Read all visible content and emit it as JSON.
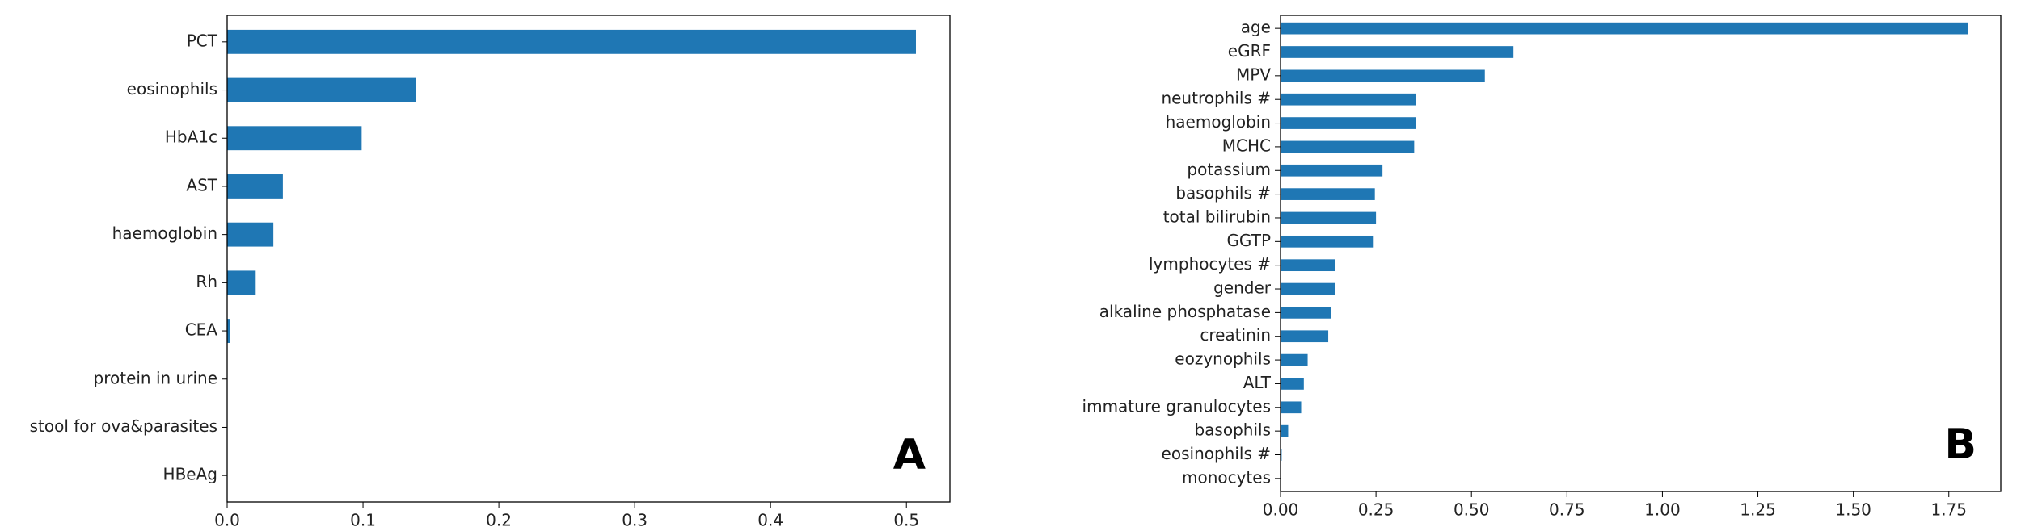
{
  "chart_data": [
    {
      "type": "barh",
      "annotation": "A",
      "color": "#1f77b4",
      "categories": [
        "PCT",
        "eosinophils",
        "HbA1c",
        "AST",
        "haemoglobin",
        "Rh",
        "CEA",
        "protein in urine",
        "stool for ova&parasites",
        "HBeAg"
      ],
      "values": [
        0.507,
        0.139,
        0.099,
        0.041,
        0.034,
        0.021,
        0.002,
        0,
        0,
        0
      ],
      "xlim": [
        0,
        0.532
      ],
      "xticks": [
        {
          "value": 0,
          "label": "0.0"
        },
        0.1,
        0.2,
        0.3,
        0.4,
        0.5
      ]
    },
    {
      "type": "barh",
      "annotation": "B",
      "color": "#1f77b4",
      "categories": [
        "age",
        "eGRF",
        "MPV",
        "neutrophils #",
        "haemoglobin",
        "MCHC",
        "potassium",
        "basophils #",
        "total bilirubin",
        "GGTP",
        "lymphocytes #",
        "gender",
        "alkaline phosphatase",
        "creatinin",
        "eozynophils",
        "ALT",
        "immature granulocytes",
        "basophils",
        "eosinophils #",
        "monocytes"
      ],
      "values": [
        1.8,
        0.61,
        0.535,
        0.355,
        0.355,
        0.35,
        0.267,
        0.247,
        0.25,
        0.244,
        0.142,
        0.142,
        0.132,
        0.125,
        0.071,
        0.061,
        0.054,
        0.02,
        0.003,
        0
      ],
      "xlim": [
        0,
        1.886
      ],
      "xticks": [
        {
          "value": 0,
          "label": "0.00"
        },
        0.25,
        {
          "value": 0.5,
          "label": "0.50"
        },
        0.75,
        {
          "value": 1,
          "label": "1.00"
        },
        1.25,
        {
          "value": 1.5,
          "label": "1.50"
        },
        1.75
      ]
    }
  ]
}
